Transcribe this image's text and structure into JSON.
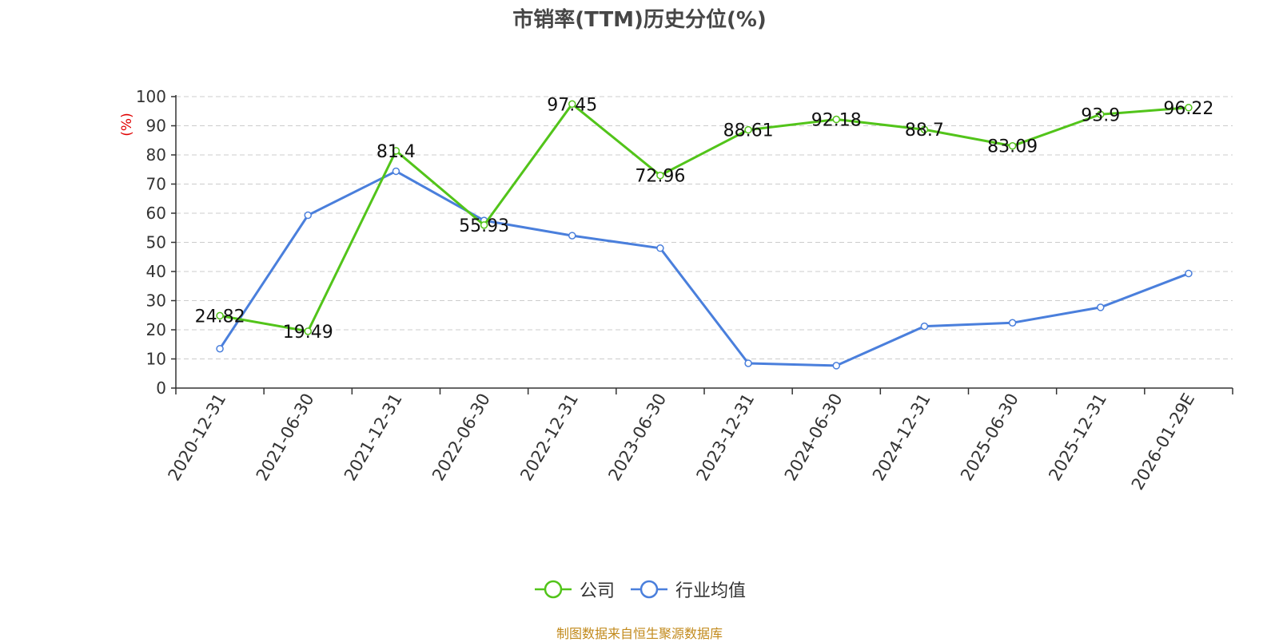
{
  "chart_data": {
    "type": "line",
    "title": "市销率(TTM)历史分位(%)",
    "ylabel": "(%)",
    "xlabel": "",
    "ylim": [
      0,
      100
    ],
    "yticks": [
      0,
      10,
      20,
      30,
      40,
      50,
      60,
      70,
      80,
      90,
      100
    ],
    "grid": true,
    "legend_position": "bottom",
    "categories": [
      "2020-12-31",
      "2021-06-30",
      "2021-12-31",
      "2022-06-30",
      "2022-12-31",
      "2023-06-30",
      "2023-12-31",
      "2024-06-30",
      "2024-12-31",
      "2025-06-30",
      "2025-12-31",
      "2026-01-29E"
    ],
    "series": [
      {
        "name": "公司",
        "color": "#52c41a",
        "values": [
          24.82,
          19.49,
          81.4,
          55.93,
          97.45,
          72.96,
          88.61,
          92.18,
          88.7,
          83.09,
          93.9,
          96.22
        ],
        "show_labels": true
      },
      {
        "name": "行业均值",
        "color": "#4a7fdc",
        "values": [
          13.5,
          59.3,
          74.4,
          57.5,
          52.3,
          48.0,
          8.5,
          7.7,
          21.2,
          22.4,
          27.7,
          39.3
        ],
        "show_labels": false
      }
    ]
  },
  "footer": "制图数据来自恒生聚源数据库"
}
